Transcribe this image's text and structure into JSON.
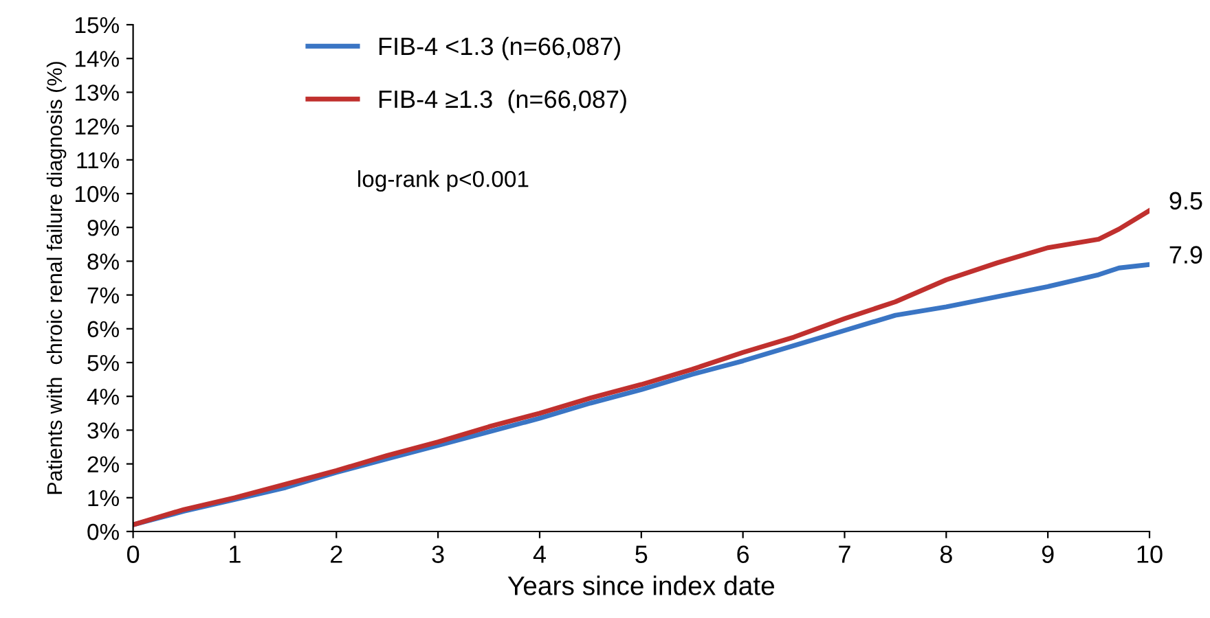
{
  "chart_data": {
    "type": "line",
    "xlabel": "Years since index date",
    "ylabel": "Patients with  chroic renal failure diagnosis (%)",
    "annotations": [
      "log-rank p<0.001"
    ],
    "xlim": [
      0,
      10
    ],
    "xticks": [
      0,
      1,
      2,
      3,
      4,
      5,
      6,
      7,
      8,
      9,
      10
    ],
    "ylim": [
      0,
      15
    ],
    "yticks": [
      {
        "value": 0,
        "label": "0%"
      },
      {
        "value": 1,
        "label": "1%"
      },
      {
        "value": 2,
        "label": "2%"
      },
      {
        "value": 3,
        "label": "3%"
      },
      {
        "value": 4,
        "label": "4%"
      },
      {
        "value": 5,
        "label": "5%"
      },
      {
        "value": 6,
        "label": "6%"
      },
      {
        "value": 7,
        "label": "7%"
      },
      {
        "value": 8,
        "label": "8%"
      },
      {
        "value": 9,
        "label": "9%"
      },
      {
        "value": 10,
        "label": "10%"
      },
      {
        "value": 11,
        "label": "11%"
      },
      {
        "value": 12,
        "label": "12%"
      },
      {
        "value": 13,
        "label": "13%"
      },
      {
        "value": 14,
        "label": "14%"
      },
      {
        "value": 15,
        "label": "15%"
      }
    ],
    "x": [
      0,
      0.5,
      1,
      1.5,
      2,
      2.5,
      3,
      3.5,
      4,
      4.5,
      5,
      5.5,
      6,
      6.5,
      7,
      7.5,
      8,
      8.5,
      9,
      9.5,
      9.7,
      10
    ],
    "series": [
      {
        "name": "FIB-4 <1.3 (n=66,087)",
        "color": "#3a75c4",
        "values": [
          0.2,
          0.6,
          0.95,
          1.3,
          1.75,
          2.15,
          2.55,
          2.95,
          3.35,
          3.8,
          4.2,
          4.65,
          5.05,
          5.5,
          5.95,
          6.4,
          6.65,
          6.95,
          7.25,
          7.6,
          7.8,
          7.9
        ],
        "value_labels": [
          null,
          null,
          null,
          null,
          null,
          null,
          null,
          null,
          null,
          null,
          null,
          null,
          null,
          null,
          null,
          null,
          null,
          null,
          null,
          null,
          null,
          "7.9"
        ]
      },
      {
        "name": "FIB-4 ≥1.3  (n=66,087)",
        "color": "#c0302e",
        "values": [
          0.2,
          0.65,
          1.0,
          1.4,
          1.8,
          2.25,
          2.65,
          3.1,
          3.5,
          3.95,
          4.35,
          4.8,
          5.3,
          5.75,
          6.3,
          6.8,
          7.45,
          7.95,
          8.4,
          8.65,
          8.95,
          9.5
        ],
        "value_labels": [
          null,
          null,
          null,
          null,
          null,
          null,
          null,
          null,
          null,
          null,
          null,
          null,
          null,
          null,
          null,
          null,
          null,
          null,
          null,
          null,
          null,
          "9.5"
        ]
      }
    ],
    "legend": "top left",
    "grid": false,
    "marker": "none",
    "line_style": "solid"
  }
}
